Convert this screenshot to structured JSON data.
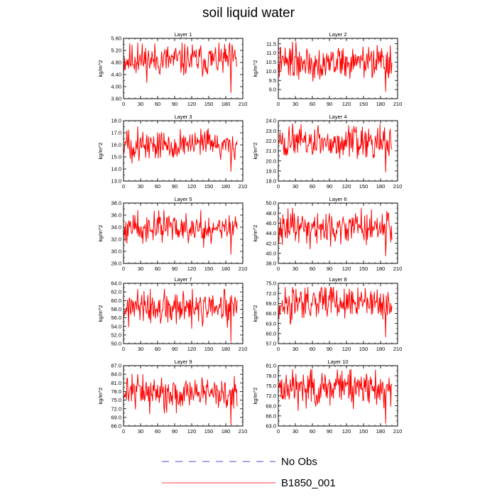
{
  "title": "soil liquid water",
  "legend": {
    "items": [
      {
        "label": "No Obs",
        "color": "#4b4bd2",
        "dash": "dashed"
      },
      {
        "label": "B1850_001",
        "color": "#ff0000",
        "dash": "solid"
      }
    ]
  },
  "series_color": "#ff0000",
  "chart_data": [
    {
      "type": "line",
      "title": "Layer 1",
      "ylabel": "kg/m^2",
      "xlim": [
        0,
        210
      ],
      "xticks": [
        0,
        30,
        60,
        90,
        120,
        150,
        180,
        210
      ],
      "ylim": [
        3.6,
        5.6
      ],
      "yticks": [
        "3.60",
        "4.00",
        "4.40",
        "4.80",
        "5.20",
        "5.60"
      ],
      "y_min": 3.8,
      "y_max": 5.45,
      "y_mean": 4.88,
      "n_points": 200,
      "seed": 11
    },
    {
      "type": "line",
      "title": "Layer 2",
      "ylabel": "kg/m^2",
      "xlim": [
        0,
        210
      ],
      "xticks": [
        0,
        30,
        60,
        90,
        120,
        150,
        180,
        210
      ],
      "ylim": [
        8.5,
        11.8
      ],
      "yticks": [
        "9.0",
        "9.5",
        "10.0",
        "10.5",
        "11.0",
        "11.5"
      ],
      "y_min": 8.9,
      "y_max": 11.6,
      "y_mean": 10.5,
      "n_points": 200,
      "seed": 22
    },
    {
      "type": "line",
      "title": "Layer 3",
      "ylabel": "kg/m^2",
      "xlim": [
        0,
        210
      ],
      "xticks": [
        0,
        30,
        60,
        90,
        120,
        150,
        180,
        210
      ],
      "ylim": [
        13.0,
        18.0
      ],
      "yticks": [
        "13.0",
        "14.0",
        "15.0",
        "16.0",
        "17.0",
        "18.0"
      ],
      "y_min": 13.8,
      "y_max": 17.5,
      "y_mean": 16.0,
      "n_points": 200,
      "seed": 33
    },
    {
      "type": "line",
      "title": "Layer 4",
      "ylabel": "kg/m^2",
      "xlim": [
        0,
        210
      ],
      "xticks": [
        0,
        30,
        60,
        90,
        120,
        150,
        180,
        210
      ],
      "ylim": [
        18.0,
        24.0
      ],
      "yticks": [
        "18.0",
        "19.0",
        "20.0",
        "21.0",
        "22.0",
        "23.0",
        "24.0"
      ],
      "y_min": 18.9,
      "y_max": 23.7,
      "y_mean": 21.8,
      "n_points": 200,
      "seed": 44
    },
    {
      "type": "line",
      "title": "Layer 5",
      "ylabel": "kg/m^2",
      "xlim": [
        0,
        210
      ],
      "xticks": [
        0,
        30,
        60,
        90,
        120,
        150,
        180,
        210
      ],
      "ylim": [
        28.0,
        38.0
      ],
      "yticks": [
        "28.0",
        "30.0",
        "32.0",
        "34.0",
        "36.0",
        "38.0"
      ],
      "y_min": 29.5,
      "y_max": 36.8,
      "y_mean": 33.9,
      "n_points": 200,
      "seed": 55
    },
    {
      "type": "line",
      "title": "Layer 6",
      "ylabel": "kg/m^2",
      "xlim": [
        0,
        210
      ],
      "xticks": [
        0,
        30,
        60,
        90,
        120,
        150,
        180,
        210
      ],
      "ylim": [
        38.0,
        50.0
      ],
      "yticks": [
        "38.0",
        "40.0",
        "42.0",
        "44.0",
        "46.0",
        "48.0",
        "50.0"
      ],
      "y_min": 39.5,
      "y_max": 49.0,
      "y_mean": 45.2,
      "n_points": 200,
      "seed": 66
    },
    {
      "type": "line",
      "title": "Layer 7",
      "ylabel": "kg/m^2",
      "xlim": [
        0,
        210
      ],
      "xticks": [
        0,
        30,
        60,
        90,
        120,
        150,
        180,
        210
      ],
      "ylim": [
        50.0,
        64.0
      ],
      "yticks": [
        "50.0",
        "52.0",
        "54.0",
        "56.0",
        "58.0",
        "60.0",
        "62.0",
        "64.0"
      ],
      "y_min": 50.5,
      "y_max": 62.6,
      "y_mean": 58.0,
      "n_points": 200,
      "seed": 77
    },
    {
      "type": "line",
      "title": "Layer 8",
      "ylabel": "kg/m^2",
      "xlim": [
        0,
        210
      ],
      "xticks": [
        0,
        30,
        60,
        90,
        120,
        150,
        180,
        210
      ],
      "ylim": [
        57.0,
        75.0
      ],
      "yticks": [
        "57.0",
        "60.0",
        "63.0",
        "66.0",
        "69.0",
        "72.0",
        "75.0"
      ],
      "y_min": 59.0,
      "y_max": 73.8,
      "y_mean": 69.0,
      "n_points": 200,
      "seed": 88
    },
    {
      "type": "line",
      "title": "Layer 9",
      "ylabel": "kg/m^2",
      "xlim": [
        0,
        210
      ],
      "xticks": [
        0,
        30,
        60,
        90,
        120,
        150,
        180,
        210
      ],
      "ylim": [
        66.0,
        87.0
      ],
      "yticks": [
        "66.0",
        "69.0",
        "72.0",
        "75.0",
        "78.0",
        "81.0",
        "84.0",
        "87.0"
      ],
      "y_min": 66.5,
      "y_max": 84.0,
      "y_mean": 77.8,
      "n_points": 200,
      "seed": 99
    },
    {
      "type": "line",
      "title": "Layer 10",
      "ylabel": "kg/m^2",
      "xlim": [
        0,
        210
      ],
      "xticks": [
        0,
        30,
        60,
        90,
        120,
        150,
        180,
        210
      ],
      "ylim": [
        63.0,
        81.0
      ],
      "yticks": [
        "63.0",
        "66.0",
        "69.0",
        "72.0",
        "75.0",
        "78.0",
        "81.0"
      ],
      "y_min": 63.8,
      "y_max": 79.8,
      "y_mean": 74.5,
      "n_points": 200,
      "seed": 111
    }
  ]
}
